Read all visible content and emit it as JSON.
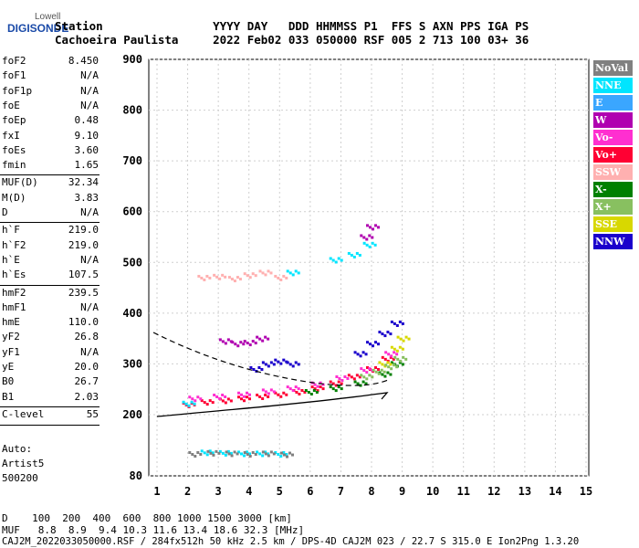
{
  "logo": {
    "line1": "Lowell",
    "line2": "DIGISONDE"
  },
  "header": {
    "row1": "Station                YYYY DAY   DDD HHMMSS P1  FFS S AXN PPS IGA PS",
    "row2": "Cachoeira Paulista     2022 Feb02 033 050000 RSF 005 2 713 100 03+ 36"
  },
  "params": [
    {
      "k": "foF2",
      "v": "8.450"
    },
    {
      "k": "foF1",
      "v": "N/A"
    },
    {
      "k": "foF1p",
      "v": "N/A"
    },
    {
      "k": "foE",
      "v": "N/A"
    },
    {
      "k": "foEp",
      "v": "0.48"
    },
    {
      "k": "fxI",
      "v": "9.10"
    },
    {
      "k": "foEs",
      "v": "3.60"
    },
    {
      "k": "fmin",
      "v": "1.65"
    },
    {
      "k": "MUF(D)",
      "v": "32.34"
    },
    {
      "k": "M(D)",
      "v": "3.83"
    },
    {
      "k": "D",
      "v": "N/A"
    },
    {
      "k": "h`F",
      "v": "219.0"
    },
    {
      "k": "h`F2",
      "v": "219.0"
    },
    {
      "k": "h`E",
      "v": "N/A"
    },
    {
      "k": "h`Es",
      "v": "107.5"
    },
    {
      "k": "hmF2",
      "v": "239.5"
    },
    {
      "k": "hmF1",
      "v": "N/A"
    },
    {
      "k": "hmE",
      "v": "110.0"
    },
    {
      "k": "yF2",
      "v": "26.8"
    },
    {
      "k": "yF1",
      "v": "N/A"
    },
    {
      "k": "yE",
      "v": "20.0"
    },
    {
      "k": "B0",
      "v": "26.7"
    },
    {
      "k": "B1",
      "v": "2.03"
    },
    {
      "k": "C-level",
      "v": "55"
    }
  ],
  "auto": {
    "l1": "Auto:",
    "l2": "Artist5",
    "l3": "500200"
  },
  "legend": [
    {
      "label": "NoVal",
      "color": "#808080"
    },
    {
      "label": "NNE",
      "color": "#00e5ff"
    },
    {
      "label": "E",
      "color": "#3aa6ff"
    },
    {
      "label": "W",
      "color": "#b000b0"
    },
    {
      "label": "Vo-",
      "color": "#ff2fd0"
    },
    {
      "label": "Vo+",
      "color": "#ff0033"
    },
    {
      "label": "SSW",
      "color": "#ffb0b0"
    },
    {
      "label": "X-",
      "color": "#008000"
    },
    {
      "label": "X+",
      "color": "#88c060"
    },
    {
      "label": "SSE",
      "color": "#d8d800"
    },
    {
      "label": "NNW",
      "color": "#1a00cc"
    }
  ],
  "chart_data": {
    "type": "scatter",
    "x_ticks": [
      1,
      2,
      3,
      4,
      5,
      6,
      7,
      8,
      9,
      10,
      11,
      12,
      13,
      14,
      15
    ],
    "y_ticks": [
      80,
      200,
      300,
      400,
      500,
      600,
      700,
      800,
      900
    ],
    "xlim": [
      1,
      15
    ],
    "ylim": [
      80,
      900
    ],
    "series": [
      {
        "color": "#ff0033",
        "x": [
          2.0,
          2.6,
          3.2,
          3.8,
          4.4,
          5.0,
          5.6,
          6.2,
          6.8,
          7.4,
          8.0,
          8.5
        ],
        "y": [
          220,
          225,
          228,
          232,
          236,
          240,
          245,
          252,
          262,
          275,
          290,
          310
        ]
      },
      {
        "color": "#ff2fd0",
        "x": [
          2.2,
          3.0,
          3.8,
          4.6,
          5.4,
          6.2,
          7.0,
          7.8,
          8.6
        ],
        "y": [
          232,
          236,
          240,
          246,
          252,
          260,
          272,
          288,
          320
        ]
      },
      {
        "color": "#1a00cc",
        "x": [
          4.2,
          4.6,
          5.0,
          5.4,
          7.6,
          8.0,
          8.4,
          8.8
        ],
        "y": [
          290,
          300,
          305,
          300,
          320,
          340,
          360,
          380
        ]
      },
      {
        "color": "#008000",
        "x": [
          6.0,
          6.8,
          7.6,
          8.4,
          8.8
        ],
        "y": [
          245,
          252,
          262,
          280,
          300
        ]
      },
      {
        "color": "#00e5ff",
        "x": [
          2.0,
          2.6,
          3.2,
          3.8,
          4.4,
          5.0,
          5.4,
          6.8,
          7.4,
          7.9
        ],
        "y": [
          222,
          126,
          125,
          124,
          124,
          123,
          480,
          505,
          515,
          535
        ]
      },
      {
        "color": "#b000b0",
        "x": [
          3.2,
          3.6,
          4.0,
          4.4,
          7.8,
          8.0
        ],
        "y": [
          345,
          340,
          342,
          350,
          550,
          570
        ]
      },
      {
        "color": "#ffb0b0",
        "x": [
          2.5,
          3.0,
          3.5,
          4.0,
          4.5,
          5.0
        ],
        "y": [
          470,
          472,
          468,
          475,
          480,
          470
        ]
      },
      {
        "color": "#d8d800",
        "x": [
          8.4,
          8.8,
          9.0
        ],
        "y": [
          300,
          330,
          350
        ]
      },
      {
        "color": "#88c060",
        "x": [
          7.8,
          8.2,
          8.6,
          8.9
        ],
        "y": [
          275,
          285,
          295,
          310
        ]
      },
      {
        "color": "#808080",
        "x": [
          2.2,
          2.8,
          3.4,
          4.0,
          4.6,
          5.2
        ],
        "y": [
          123,
          125,
          124,
          123,
          124,
          122
        ]
      }
    ]
  },
  "footer": {
    "d_row": "D    100  200  400  600  800 1000 1500 3000 [km]",
    "muf_row": "MUF   8.8  8.9  9.4 10.3 11.6 13.4 18.6 32.3 [MHz]",
    "file_row": "CAJ2M_2022033050000.RSF / 284fx512h 50 kHz 2.5 km / DPS-4D CAJ2M 023 / 22.7 S 315.0 E Ion2Png 1.3.20"
  }
}
